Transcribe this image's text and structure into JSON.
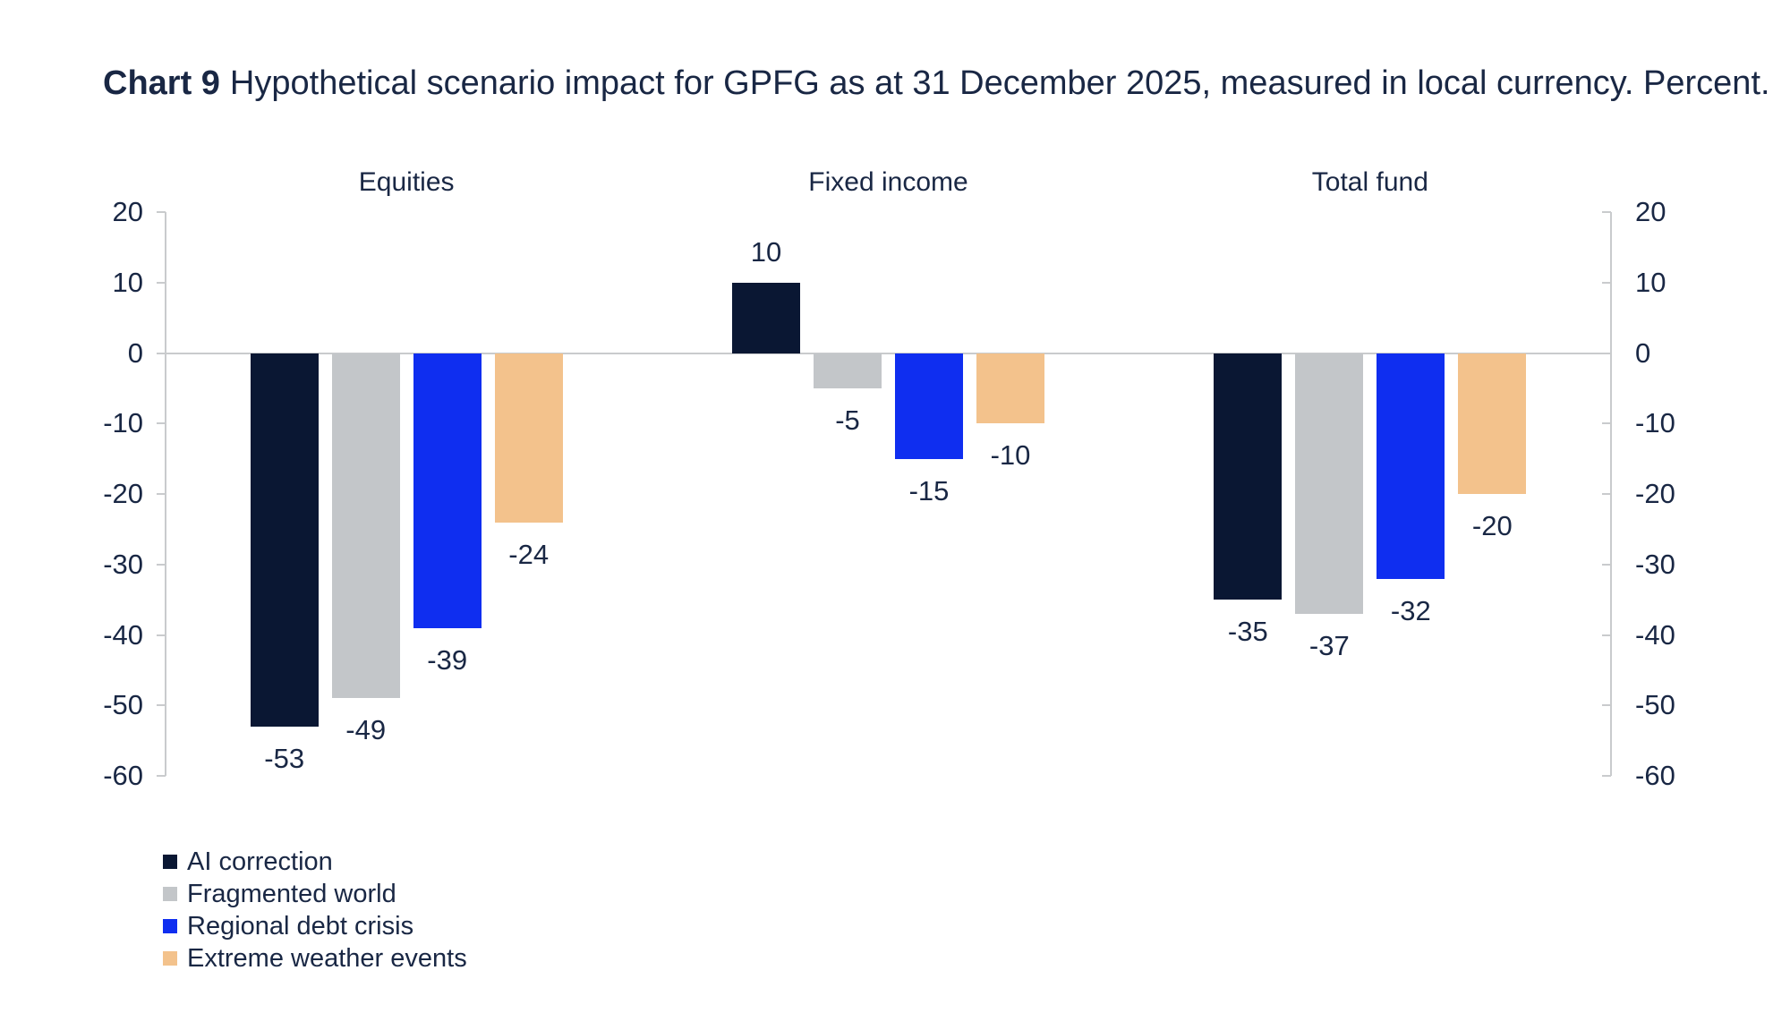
{
  "title": {
    "label": "Chart 9",
    "text": "Hypothetical scenario impact for GPFG as at 31 December 2025, measured in local currency. Percent."
  },
  "colors": {
    "text": "#192744",
    "axis": "#c9cbcd",
    "ai_correction": "#0a1733",
    "fragmented_world": "#c3c6c9",
    "regional_debt_crisis": "#0f2ef0",
    "extreme_weather_events": "#f3c28c"
  },
  "chart_data": {
    "type": "bar",
    "categories": [
      "Equities",
      "Fixed income",
      "Total fund"
    ],
    "series": [
      {
        "name": "AI correction",
        "color": "#0a1733",
        "values": [
          -53,
          10,
          -35
        ]
      },
      {
        "name": "Fragmented world",
        "color": "#c3c6c9",
        "values": [
          -49,
          -5,
          -37
        ]
      },
      {
        "name": "Regional debt crisis",
        "color": "#0f2ef0",
        "values": [
          -39,
          -15,
          -32
        ]
      },
      {
        "name": "Extreme weather events",
        "color": "#f3c28c",
        "values": [
          -24,
          -10,
          -20
        ]
      }
    ],
    "ylim": [
      -60,
      20
    ],
    "yticks": [
      20,
      10,
      0,
      -10,
      -20,
      -30,
      -40,
      -50,
      -60
    ],
    "axis_sides": [
      "left",
      "right"
    ],
    "grid": false,
    "value_labels": true,
    "legend_position": "bottom-left"
  }
}
